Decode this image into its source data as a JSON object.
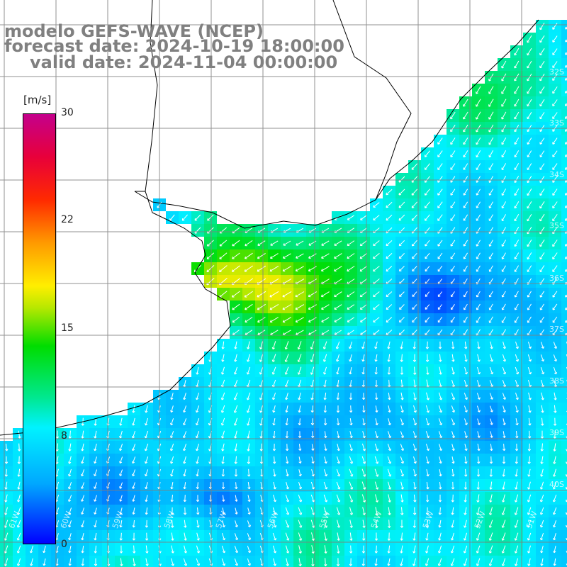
{
  "title": {
    "line1": "modelo GEFS-WAVE (NCEP)",
    "line2": "forecast date: 2024-10-19 18:00:00",
    "line3": "valid date: 2024-11-04 00:00:00"
  },
  "colorbar": {
    "unit": "[m/s]",
    "ticks": [
      "30",
      "22",
      "15",
      "8",
      "0"
    ],
    "min": 0,
    "max": 30
  },
  "lat_labels": [
    "32S",
    "33S",
    "34S",
    "35S",
    "36S",
    "37S",
    "38S",
    "39S",
    "40S"
  ],
  "lon_labels": [
    "61W",
    "60W",
    "59W",
    "58W",
    "57W",
    "56W",
    "55W",
    "54W",
    "53W",
    "52W",
    "51W"
  ],
  "colors": {
    "land": "#ffffff",
    "grid": "#808080",
    "coast": "#000000",
    "arrow": "#ffffff",
    "title": "#808080"
  }
}
